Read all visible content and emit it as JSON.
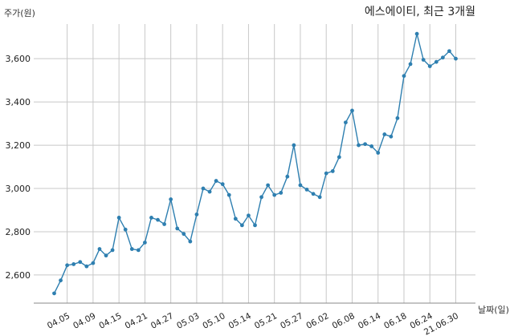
{
  "chart_data": {
    "type": "line",
    "title": "에스에이티, 최근 3개월",
    "ylabel": "주가(원)",
    "xlabel": "날짜(일)",
    "ylim": [
      2470,
      3760
    ],
    "yticks": [
      2600,
      2800,
      3000,
      3200,
      3400,
      3600
    ],
    "ytick_labels": [
      "2,600",
      "2,800",
      "3,000",
      "3,200",
      "3,400",
      "3,600"
    ],
    "xticks": [
      {
        "label": "04.05",
        "index": 2
      },
      {
        "label": "04.09",
        "index": 6
      },
      {
        "label": "04.15",
        "index": 10
      },
      {
        "label": "04.21",
        "index": 14
      },
      {
        "label": "04.27",
        "index": 18
      },
      {
        "label": "05.03",
        "index": 22
      },
      {
        "label": "05.10",
        "index": 26
      },
      {
        "label": "05.14",
        "index": 30
      },
      {
        "label": "05.21",
        "index": 34
      },
      {
        "label": "05.27",
        "index": 38
      },
      {
        "label": "06.02",
        "index": 42
      },
      {
        "label": "06.08",
        "index": 46
      },
      {
        "label": "06.14",
        "index": 50
      },
      {
        "label": "06.18",
        "index": 54
      },
      {
        "label": "06.24",
        "index": 58
      },
      {
        "label": "21.06.30",
        "index": 62
      }
    ],
    "grid": true,
    "color": "#2e7fb0",
    "series": [
      {
        "values": [
          2515,
          2575,
          2645,
          2650,
          2660,
          2640,
          2655,
          2720,
          2690,
          2715,
          2865,
          2810,
          2720,
          2715,
          2750,
          2865,
          2855,
          2835,
          2950,
          2815,
          2790,
          2755,
          2880,
          3000,
          2985,
          3035,
          3020,
          2970,
          2860,
          2830,
          2875,
          2830,
          2960,
          3015,
          2970,
          2980,
          3055,
          3200,
          3015,
          2995,
          2975,
          2960,
          3070,
          3080,
          3145,
          3305,
          3360,
          3200,
          3205,
          3195,
          3165,
          3250,
          3240,
          3325,
          3520,
          3575,
          3715,
          3595,
          3565,
          3585,
          3605,
          3635,
          3600
        ]
      }
    ]
  }
}
